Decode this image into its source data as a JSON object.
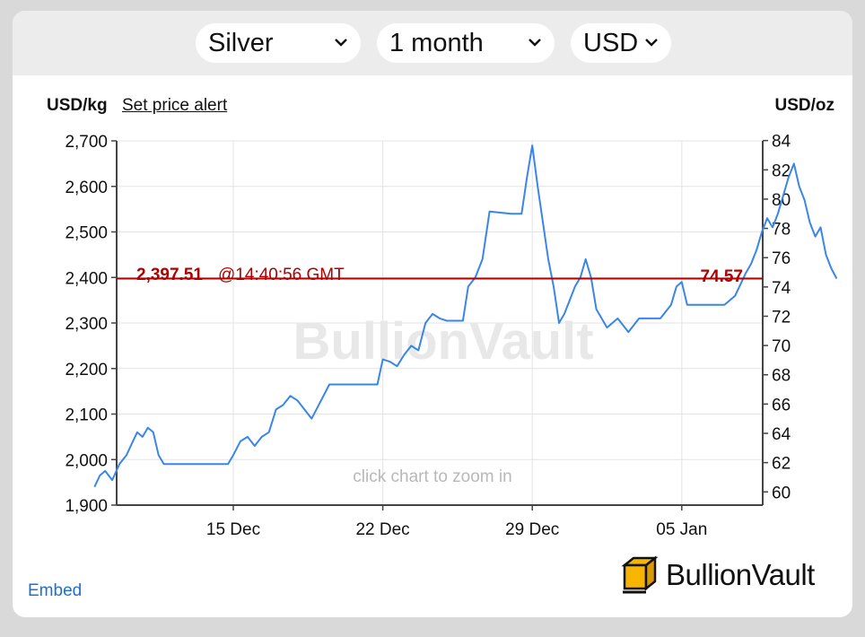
{
  "controls": {
    "metal": "Silver",
    "period": "1 month",
    "currency": "USD"
  },
  "header": {
    "unit_left": "USD/kg",
    "set_price_alert": "Set price alert",
    "unit_right": "USD/oz"
  },
  "current_price": {
    "usd_kg": "2,397.51",
    "time": "@14:40:56 GMT",
    "usd_oz": "74.57"
  },
  "watermark": "BullionVault",
  "zoom_hint": "click chart to zoom in",
  "footer": {
    "embed": "Embed",
    "logo_text": "BullionVault"
  },
  "colors": {
    "line": "#3a86e8",
    "price_line": "#b00000",
    "grid": "#e3e3e3",
    "axis": "#444444"
  },
  "chart_data": {
    "type": "line",
    "x_unit": "date",
    "x_ticks": [
      "15 Dec",
      "22 Dec",
      "29 Dec",
      "05 Jan"
    ],
    "y_left": {
      "label": "USD/kg",
      "ticks": [
        "1,900",
        "2,000",
        "2,100",
        "2,200",
        "2,300",
        "2,400",
        "2,500",
        "2,600",
        "2,700"
      ],
      "range": [
        1900,
        2700
      ]
    },
    "y_right": {
      "label": "USD/oz",
      "ticks": [
        "60",
        "62",
        "64",
        "66",
        "68",
        "70",
        "72",
        "74",
        "76",
        "78",
        "80",
        "82",
        "84"
      ]
    },
    "reference_line": {
      "value_usd_kg": 2397.51,
      "value_usd_oz": 74.57
    },
    "series": [
      {
        "values": [
          [
            "2025-12-08 12:00",
            1940
          ],
          [
            "2025-12-08 18:00",
            1965
          ],
          [
            "2025-12-09 00:00",
            1975
          ],
          [
            "2025-12-09 08:00",
            1955
          ],
          [
            "2025-12-09 16:00",
            1990
          ],
          [
            "2025-12-10 00:00",
            2010
          ],
          [
            "2025-12-10 06:00",
            2035
          ],
          [
            "2025-12-10 12:00",
            2060
          ],
          [
            "2025-12-10 18:00",
            2050
          ],
          [
            "2025-12-11 00:00",
            2070
          ],
          [
            "2025-12-11 06:00",
            2060
          ],
          [
            "2025-12-11 12:00",
            2010
          ],
          [
            "2025-12-11 18:00",
            1990
          ],
          [
            "2025-12-12 00:00",
            1990
          ],
          [
            "2025-12-12 12:00",
            1990
          ],
          [
            "2025-12-13 00:00",
            1990
          ],
          [
            "2025-12-14 00:00",
            1990
          ],
          [
            "2025-12-14 18:00",
            1990
          ],
          [
            "2025-12-15 00:00",
            2010
          ],
          [
            "2025-12-15 08:00",
            2040
          ],
          [
            "2025-12-15 16:00",
            2050
          ],
          [
            "2025-12-16 00:00",
            2030
          ],
          [
            "2025-12-16 08:00",
            2050
          ],
          [
            "2025-12-16 16:00",
            2060
          ],
          [
            "2025-12-17 00:00",
            2110
          ],
          [
            "2025-12-17 08:00",
            2120
          ],
          [
            "2025-12-17 16:00",
            2140
          ],
          [
            "2025-12-18 00:00",
            2130
          ],
          [
            "2025-12-18 08:00",
            2110
          ],
          [
            "2025-12-18 16:00",
            2090
          ],
          [
            "2025-12-19 00:00",
            2120
          ],
          [
            "2025-12-19 12:00",
            2165
          ],
          [
            "2025-12-20 00:00",
            2165
          ],
          [
            "2025-12-21 00:00",
            2165
          ],
          [
            "2025-12-21 18:00",
            2165
          ],
          [
            "2025-12-22 00:00",
            2220
          ],
          [
            "2025-12-22 08:00",
            2215
          ],
          [
            "2025-12-22 16:00",
            2205
          ],
          [
            "2025-12-23 00:00",
            2230
          ],
          [
            "2025-12-23 08:00",
            2250
          ],
          [
            "2025-12-23 16:00",
            2240
          ],
          [
            "2025-12-24 00:00",
            2300
          ],
          [
            "2025-12-24 08:00",
            2320
          ],
          [
            "2025-12-24 16:00",
            2310
          ],
          [
            "2025-12-25 00:00",
            2305
          ],
          [
            "2025-12-25 18:00",
            2305
          ],
          [
            "2025-12-26 00:00",
            2380
          ],
          [
            "2025-12-26 08:00",
            2400
          ],
          [
            "2025-12-26 16:00",
            2440
          ],
          [
            "2025-12-27 00:00",
            2545
          ],
          [
            "2025-12-28 00:00",
            2540
          ],
          [
            "2025-12-28 12:00",
            2540
          ],
          [
            "2025-12-28 18:00",
            2620
          ],
          [
            "2025-12-29 00:00",
            2690
          ],
          [
            "2025-12-29 06:00",
            2600
          ],
          [
            "2025-12-29 12:00",
            2520
          ],
          [
            "2025-12-29 18:00",
            2440
          ],
          [
            "2025-12-30 00:00",
            2380
          ],
          [
            "2025-12-30 06:00",
            2300
          ],
          [
            "2025-12-30 12:00",
            2320
          ],
          [
            "2025-12-30 18:00",
            2350
          ],
          [
            "2025-12-31 00:00",
            2380
          ],
          [
            "2025-12-31 06:00",
            2400
          ],
          [
            "2025-12-31 12:00",
            2440
          ],
          [
            "2025-12-31 18:00",
            2400
          ],
          [
            "2026-01-01 00:00",
            2330
          ],
          [
            "2026-01-01 12:00",
            2290
          ],
          [
            "2026-01-02 00:00",
            2310
          ],
          [
            "2026-01-02 12:00",
            2280
          ],
          [
            "2026-01-03 00:00",
            2310
          ],
          [
            "2026-01-04 00:00",
            2310
          ],
          [
            "2026-01-04 12:00",
            2340
          ],
          [
            "2026-01-04 18:00",
            2380
          ],
          [
            "2026-01-05 00:00",
            2390
          ],
          [
            "2026-01-05 06:00",
            2340
          ],
          [
            "2026-01-05 12:00",
            2340
          ],
          [
            "2026-01-06 00:00",
            2340
          ],
          [
            "2026-01-07 00:00",
            2340
          ],
          [
            "2026-01-07 12:00",
            2360
          ],
          [
            "2026-01-08 00:00",
            2410
          ],
          [
            "2026-01-08 06:00",
            2430
          ],
          [
            "2026-01-08 12:00",
            2460
          ],
          [
            "2026-01-08 18:00",
            2500
          ],
          [
            "2026-01-09 00:00",
            2530
          ],
          [
            "2026-01-09 06:00",
            2510
          ],
          [
            "2026-01-09 12:00",
            2540
          ],
          [
            "2026-01-09 18:00",
            2580
          ],
          [
            "2026-01-10 00:00",
            2620
          ],
          [
            "2026-01-10 06:00",
            2650
          ],
          [
            "2026-01-10 12:00",
            2600
          ],
          [
            "2026-01-10 18:00",
            2570
          ],
          [
            "2026-01-11 00:00",
            2520
          ],
          [
            "2026-01-11 06:00",
            2490
          ],
          [
            "2026-01-11 12:00",
            2510
          ],
          [
            "2026-01-11 18:00",
            2450
          ],
          [
            "2026-01-12 00:00",
            2420
          ],
          [
            "2026-01-12 06:00",
            2397.51
          ]
        ]
      }
    ]
  }
}
